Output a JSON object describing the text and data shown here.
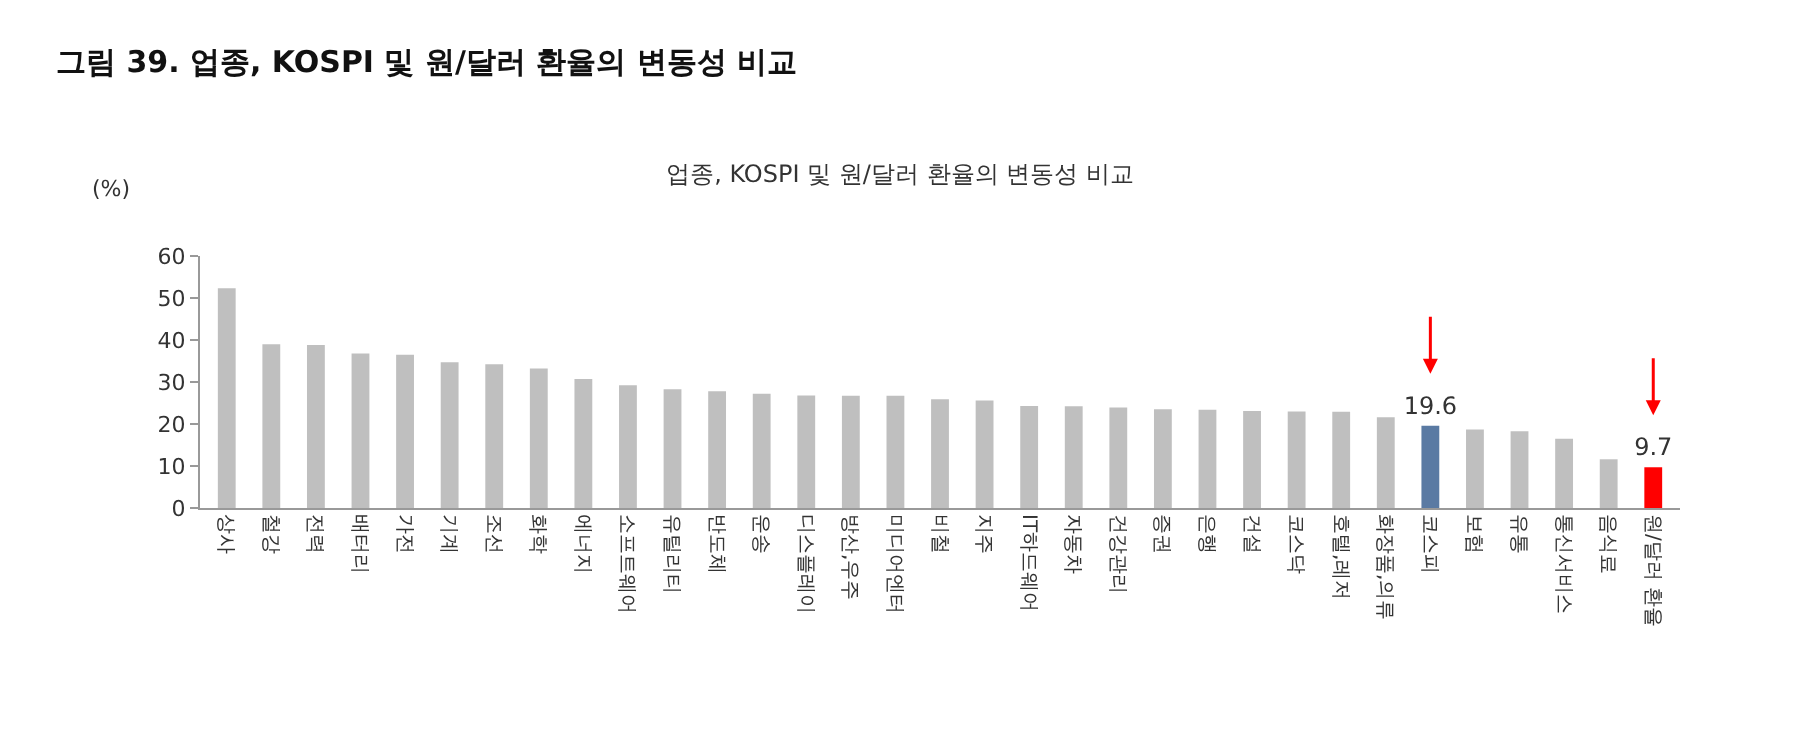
{
  "chart_data": {
    "type": "bar",
    "title": "그림 39. 업종, KOSPI 및 원/달러 환율의 변동성 비교",
    "subtitle": "업종, KOSPI 및 원/달러 환율의 변동성 비교",
    "ylabel": "(%)",
    "categories": [
      "상사",
      "철강",
      "전력",
      "배터리",
      "가전",
      "기계",
      "조선",
      "화학",
      "에너지",
      "소프트웨어",
      "유틸리티",
      "반도체",
      "운송",
      "디스플레이",
      "방산,우주",
      "미디어엔터",
      "비철",
      "지주",
      "IT하드웨어",
      "자동차",
      "건강관리",
      "증권",
      "은행",
      "건설",
      "코스닥",
      "호텔,레저",
      "화장품,의류",
      "코스피",
      "보험",
      "유통",
      "통신서비스",
      "음식료",
      "원/달러 환율"
    ],
    "values": [
      52.3,
      39,
      38.8,
      36.8,
      36.5,
      34.7,
      34.2,
      33.2,
      30.7,
      29.2,
      28.3,
      27.8,
      27.2,
      26.8,
      26.7,
      26.7,
      25.9,
      25.6,
      24.3,
      24.2,
      23.9,
      23.5,
      23.4,
      23.1,
      23.0,
      22.9,
      21.6,
      19.6,
      18.7,
      18.3,
      16.5,
      11.6,
      9.7
    ],
    "colors": [
      "#bfbfbf",
      "#bfbfbf",
      "#bfbfbf",
      "#bfbfbf",
      "#bfbfbf",
      "#bfbfbf",
      "#bfbfbf",
      "#bfbfbf",
      "#bfbfbf",
      "#bfbfbf",
      "#bfbfbf",
      "#bfbfbf",
      "#bfbfbf",
      "#bfbfbf",
      "#bfbfbf",
      "#bfbfbf",
      "#bfbfbf",
      "#bfbfbf",
      "#bfbfbf",
      "#bfbfbf",
      "#bfbfbf",
      "#bfbfbf",
      "#bfbfbf",
      "#bfbfbf",
      "#bfbfbf",
      "#bfbfbf",
      "#bfbfbf",
      "#5a7aa3",
      "#bfbfbf",
      "#bfbfbf",
      "#bfbfbf",
      "#bfbfbf",
      "#ff0000"
    ],
    "value_labels": [
      null,
      null,
      null,
      null,
      null,
      null,
      null,
      null,
      null,
      null,
      null,
      null,
      null,
      null,
      null,
      null,
      null,
      null,
      null,
      null,
      null,
      null,
      null,
      null,
      null,
      null,
      null,
      "19.6",
      null,
      null,
      null,
      null,
      "9.7"
    ],
    "ylim": [
      0,
      60
    ],
    "yticks": [
      0,
      10,
      20,
      30,
      40,
      50,
      60
    ],
    "grid": false,
    "legend": false
  }
}
